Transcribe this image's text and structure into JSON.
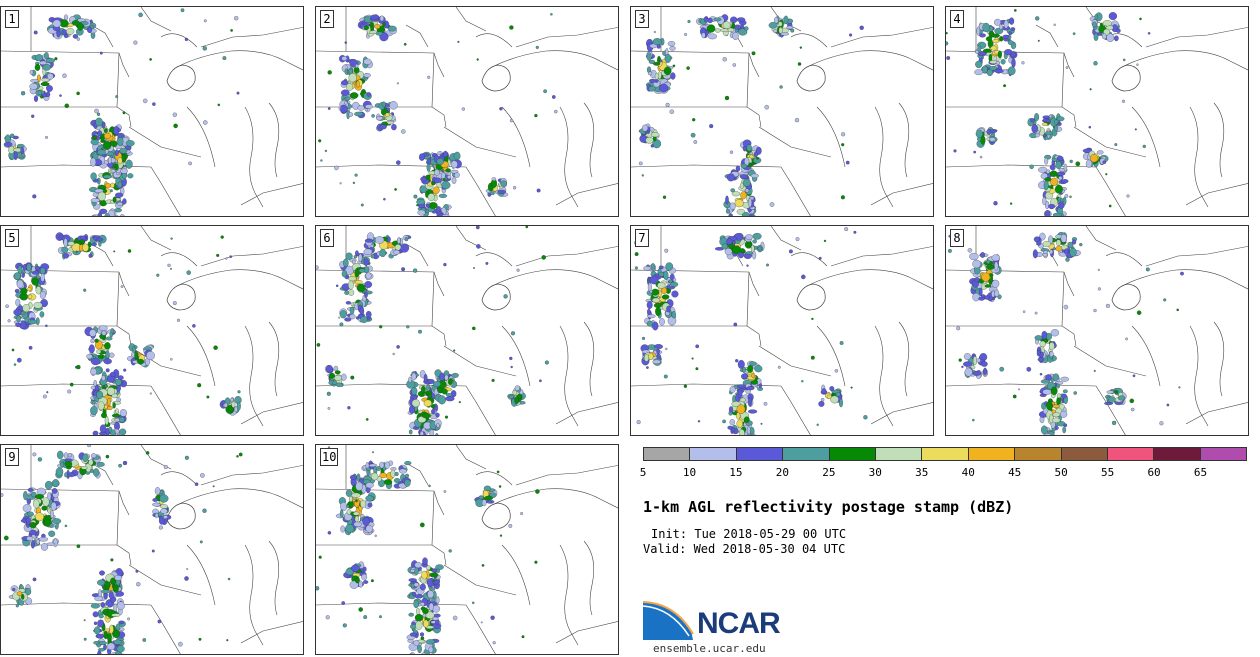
{
  "panels": [
    {
      "label": "1"
    },
    {
      "label": "2"
    },
    {
      "label": "3"
    },
    {
      "label": "4"
    },
    {
      "label": "5"
    },
    {
      "label": "6"
    },
    {
      "label": "7"
    },
    {
      "label": "8"
    },
    {
      "label": "9"
    },
    {
      "label": "10"
    }
  ],
  "colorbar": {
    "colors": [
      "#a6a6a6",
      "#b3bfea",
      "#5a5ad8",
      "#4d9e9e",
      "#068a06",
      "#c0dfb8",
      "#ecdc5e",
      "#f0b21e",
      "#b8842e",
      "#8c5a3c",
      "#f0547c",
      "#6e1a3a",
      "#b04cae"
    ],
    "ticks": [
      "5",
      "10",
      "15",
      "20",
      "25",
      "30",
      "35",
      "40",
      "45",
      "50",
      "55",
      "60",
      "65"
    ]
  },
  "title": "1-km AGL reflectivity postage stamp (dBZ)",
  "init": "Init: Tue 2018-05-29 00 UTC",
  "valid": "Valid: Wed 2018-05-30 04 UTC",
  "logo": {
    "name": "NCAR",
    "url": "ensemble.ucar.edu"
  }
}
